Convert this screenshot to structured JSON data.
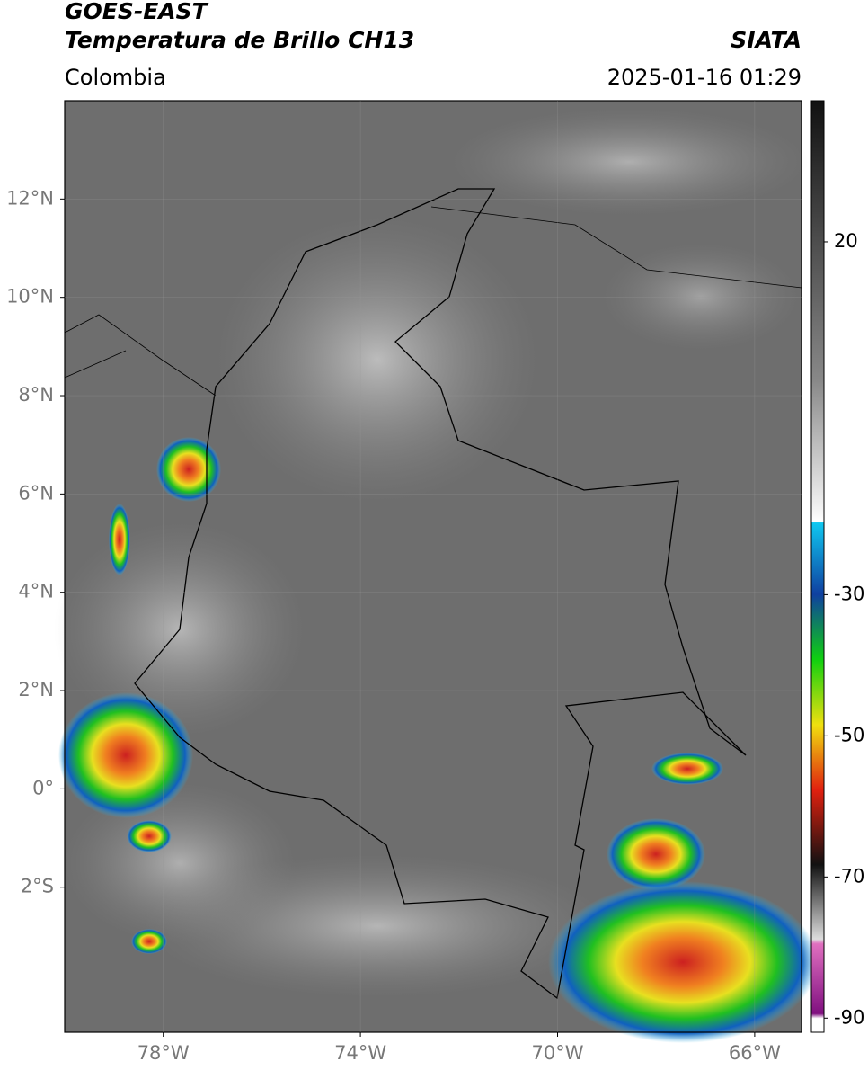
{
  "header": {
    "title": "GOES-EAST",
    "subtitle": "Temperatura de Brillo CH13",
    "region": "Colombia",
    "source": "SIATA",
    "timestamp": "2025-01-16 01:29"
  },
  "map": {
    "xlim": [
      -80,
      -65.05
    ],
    "ylim": [
      -4.95,
      14
    ],
    "xticks": [
      {
        "value": -78,
        "label": "78°W"
      },
      {
        "value": -74,
        "label": "74°W"
      },
      {
        "value": -70,
        "label": "70°W"
      },
      {
        "value": -66,
        "label": "66°W"
      }
    ],
    "yticks": [
      {
        "value": 12,
        "label": "12°N"
      },
      {
        "value": 10,
        "label": "10°N"
      },
      {
        "value": 8,
        "label": "8°N"
      },
      {
        "value": 6,
        "label": "6°N"
      },
      {
        "value": 4,
        "label": "4°N"
      },
      {
        "value": 2,
        "label": "2°N"
      },
      {
        "value": 0,
        "label": "0°"
      },
      {
        "value": -2,
        "label": "2°S"
      }
    ]
  },
  "colorbar": {
    "lim": [
      -92,
      40
    ],
    "ticks": [
      20,
      -30,
      -50,
      -70,
      -90
    ]
  }
}
